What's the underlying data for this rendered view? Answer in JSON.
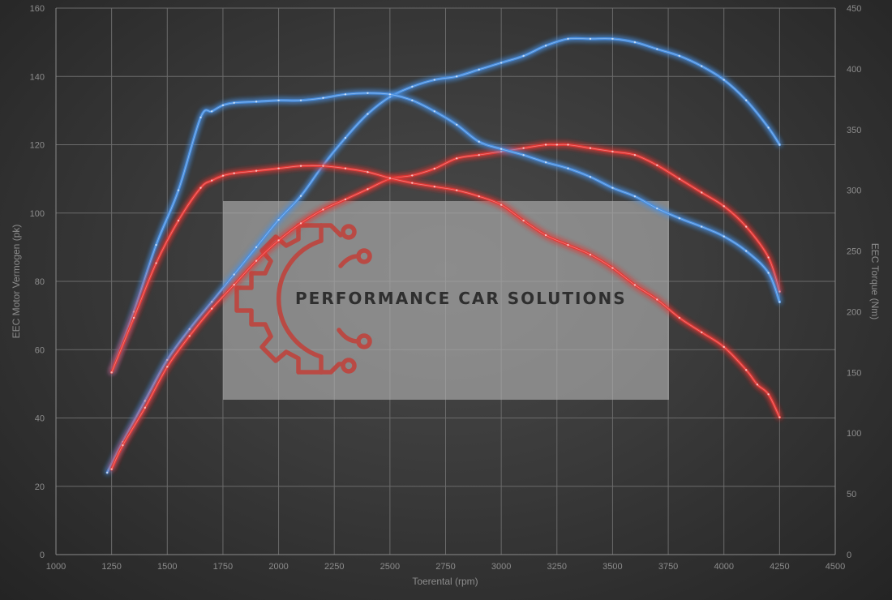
{
  "chart_data": {
    "type": "line",
    "xlabel": "Toerental (rpm)",
    "ylabel_left": "EEC Motor Vermogen (pk)",
    "ylabel_right": "EEC Torque (Nm)",
    "xlim": [
      1000,
      4500
    ],
    "ylim_left": [
      0,
      160
    ],
    "ylim_right": [
      0,
      450
    ],
    "x_ticks": [
      "1000",
      "1250",
      "1500",
      "1750",
      "2000",
      "2250",
      "2500",
      "2750",
      "3000",
      "3250",
      "3500",
      "3750",
      "4000",
      "4250",
      "4500"
    ],
    "y_left_ticks": [
      "0",
      "20",
      "40",
      "60",
      "80",
      "100",
      "120",
      "140",
      "160"
    ],
    "y_right_ticks": [
      "0",
      "50",
      "100",
      "150",
      "200",
      "250",
      "300",
      "350",
      "400",
      "450"
    ],
    "grid": true,
    "series": [
      {
        "axis": "left",
        "color": "#4a90e2",
        "x": [
          1230,
          1300,
          1400,
          1500,
          1600,
          1700,
          1800,
          1900,
          2000,
          2100,
          2200,
          2300,
          2400,
          2500,
          2600,
          2700,
          2800,
          2900,
          3000,
          3100,
          3200,
          3300,
          3400,
          3500,
          3600,
          3700,
          3800,
          3900,
          4000,
          4100,
          4200,
          4250
        ],
        "values": [
          24,
          33,
          45,
          57,
          66,
          74,
          82,
          90,
          98,
          105,
          114,
          122,
          129,
          134,
          137,
          139,
          140,
          142,
          144,
          146,
          149,
          151,
          151,
          151,
          150,
          148,
          146,
          143,
          139,
          133,
          125,
          120
        ]
      },
      {
        "axis": "left",
        "color": "#e53935",
        "x": [
          1250,
          1300,
          1400,
          1500,
          1600,
          1700,
          1800,
          1900,
          2000,
          2100,
          2200,
          2300,
          2400,
          2500,
          2600,
          2700,
          2800,
          2900,
          3000,
          3100,
          3200,
          3250,
          3300,
          3400,
          3500,
          3600,
          3700,
          3800,
          3900,
          4000,
          4100,
          4200,
          4250
        ],
        "values": [
          25,
          32,
          43,
          55,
          64,
          72,
          79,
          86,
          92,
          97,
          101,
          104,
          107,
          110,
          111,
          113,
          116,
          117,
          118,
          119,
          120,
          120,
          120,
          119,
          118,
          117,
          114,
          110,
          106,
          102,
          96,
          87,
          77
        ]
      },
      {
        "axis": "right",
        "color": "#4a90e2",
        "x": [
          1250,
          1350,
          1450,
          1550,
          1650,
          1700,
          1750,
          1800,
          1900,
          2000,
          2100,
          2200,
          2300,
          2400,
          2500,
          2600,
          2700,
          2800,
          2900,
          3000,
          3100,
          3200,
          3300,
          3400,
          3500,
          3600,
          3700,
          3800,
          3900,
          4000,
          4100,
          4200,
          4250
        ],
        "values": [
          150,
          200,
          255,
          300,
          360,
          365,
          370,
          372,
          373,
          374,
          374,
          376,
          379,
          380,
          379,
          374,
          365,
          354,
          340,
          334,
          329,
          323,
          318,
          311,
          302,
          295,
          285,
          277,
          270,
          262,
          250,
          232,
          208
        ]
      },
      {
        "axis": "right",
        "color": "#e53935",
        "x": [
          1250,
          1350,
          1450,
          1550,
          1650,
          1700,
          1750,
          1800,
          1900,
          2000,
          2100,
          2200,
          2300,
          2400,
          2500,
          2600,
          2700,
          2800,
          2900,
          3000,
          3100,
          3200,
          3300,
          3400,
          3500,
          3600,
          3700,
          3800,
          3900,
          4000,
          4100,
          4150,
          4200,
          4250
        ],
        "values": [
          150,
          195,
          240,
          275,
          302,
          308,
          312,
          314,
          316,
          318,
          320,
          320,
          318,
          315,
          310,
          306,
          303,
          300,
          295,
          288,
          275,
          263,
          255,
          247,
          236,
          222,
          210,
          195,
          183,
          171,
          152,
          140,
          132,
          113
        ]
      }
    ]
  },
  "watermark": {
    "text": "PERFORMANCE CAR SOLUTIONS",
    "logo": "gear-circuit-icon",
    "logo_color": "#b94a44",
    "panel_color": "#b4b4b4"
  }
}
